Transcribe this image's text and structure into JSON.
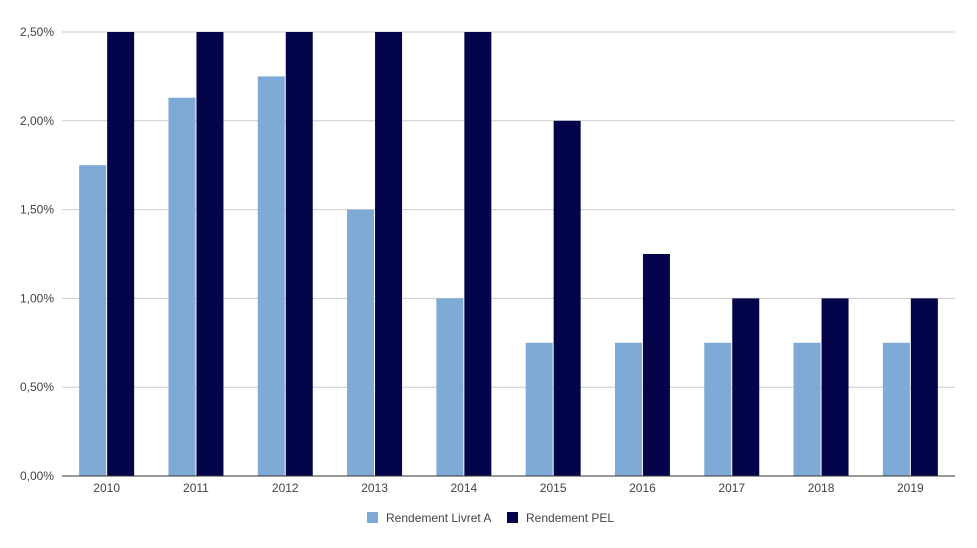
{
  "chart_data": {
    "type": "bar",
    "categories": [
      "2010",
      "2011",
      "2012",
      "2013",
      "2014",
      "2015",
      "2016",
      "2017",
      "2018",
      "2019"
    ],
    "series": [
      {
        "name": "Rendement Livret A",
        "color": "#7eaad5",
        "values": [
          1.75,
          2.13,
          2.25,
          1.5,
          1.0,
          0.75,
          0.75,
          0.75,
          0.75,
          0.75
        ]
      },
      {
        "name": "Rendement PEL",
        "color": "#04044b",
        "values": [
          2.5,
          2.5,
          2.5,
          2.5,
          2.5,
          2.0,
          1.25,
          1.0,
          1.0,
          1.0
        ]
      }
    ],
    "y_ticks": [
      "0,00%",
      "0,50%",
      "1,00%",
      "1,50%",
      "2,00%",
      "2,50%"
    ],
    "ylim": [
      0,
      2.5
    ],
    "grid": true,
    "legend_position": "bottom-center",
    "title": "",
    "xlabel": "",
    "ylabel": ""
  }
}
